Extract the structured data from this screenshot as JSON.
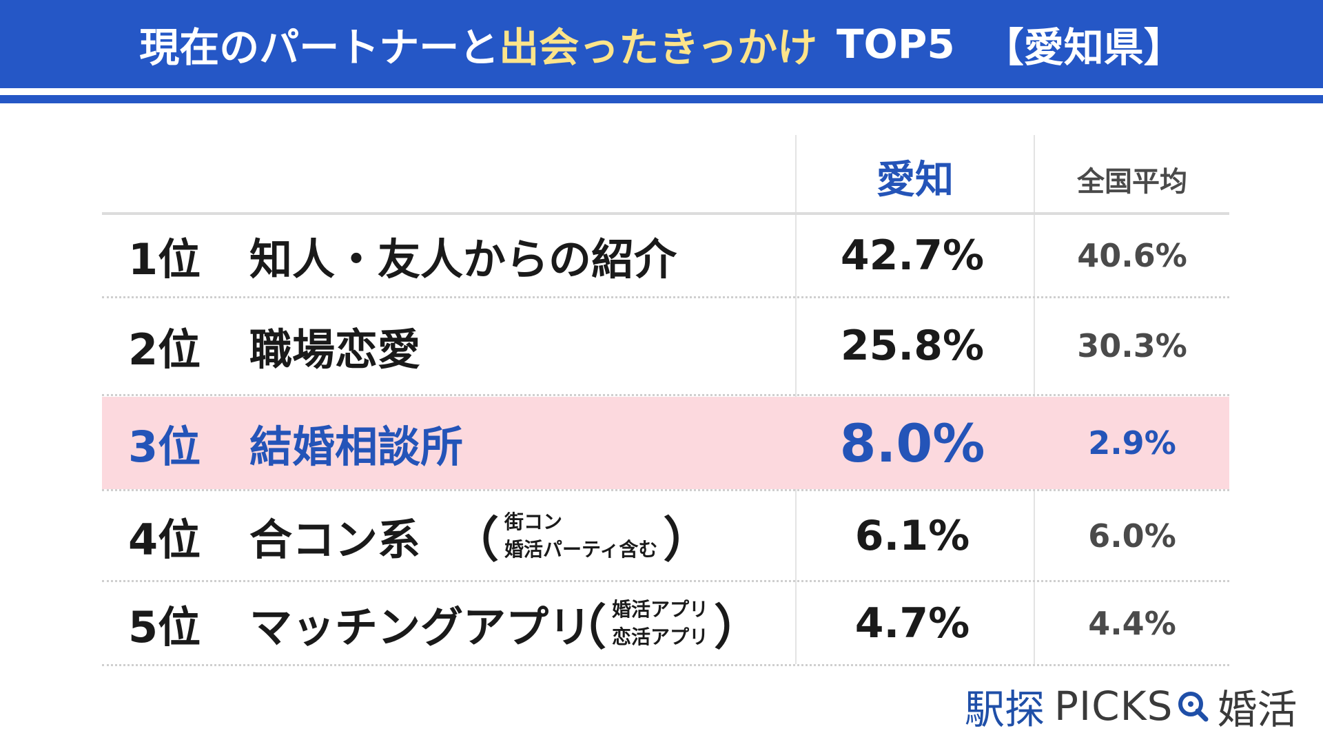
{
  "header": {
    "title_part1": "現在のパートナーと",
    "title_part2": "出会ったきっかけ",
    "title_part3": "TOP5",
    "title_part4": "【愛知県】"
  },
  "columns": {
    "aichi": "愛知",
    "national": "全国平均"
  },
  "rows": [
    {
      "rank": "1位",
      "label": "知人・友人からの紹介",
      "aichi": "42.7%",
      "national": "40.6%"
    },
    {
      "rank": "2位",
      "label": "職場恋愛",
      "aichi": "25.8%",
      "national": "30.3%"
    },
    {
      "rank": "3位",
      "label": "結婚相談所",
      "aichi": "8.0%",
      "national": "2.9%"
    },
    {
      "rank": "4位",
      "label": "合コン系",
      "aichi": "6.1%",
      "national": "6.0%",
      "note_open": "（",
      "note_line1": "街コン",
      "note_line2": "婚活パーティ含む",
      "note_close": "）"
    },
    {
      "rank": "5位",
      "label": "マッチングアプリ",
      "aichi": "4.7%",
      "national": "4.4%",
      "note_open": "（",
      "note_line1": "婚活アプリ",
      "note_line2": "恋活アプリ",
      "note_close": "）"
    }
  ],
  "highlight_row": 3,
  "colors": {
    "brand_blue": "#2557c6",
    "title_highlight": "#fde48a",
    "highlight_row_bg": "#fcd9de",
    "highlight_text": "#2454b8"
  },
  "logo": {
    "main": "駅探",
    "picks": "PICKS",
    "suffix": "婚活",
    "icon": "magnifier-q-icon"
  },
  "chart_data": {
    "type": "table",
    "title": "現在のパートナーと出会ったきっかけ TOP5 【愛知県】",
    "columns": [
      "愛知",
      "全国平均"
    ],
    "categories": [
      "知人・友人からの紹介",
      "職場恋愛",
      "結婚相談所",
      "合コン系",
      "マッチングアプリ"
    ],
    "series": [
      {
        "name": "愛知",
        "values": [
          42.7,
          25.8,
          8.0,
          6.1,
          4.7
        ]
      },
      {
        "name": "全国平均",
        "values": [
          40.6,
          30.3,
          2.9,
          6.0,
          4.4
        ]
      }
    ],
    "unit": "%"
  }
}
